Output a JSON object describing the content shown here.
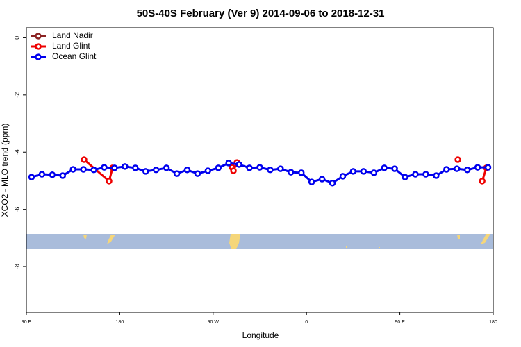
{
  "chart_data": {
    "type": "line",
    "title": "50S-40S February (Ver 9)   2014-09-06 to 2018-12-31",
    "xlabel": "Longitude",
    "ylabel": "XCO2 - MLO trend (ppm)",
    "xlim": [
      90,
      540
    ],
    "xticks": [
      {
        "value": 90,
        "label": "90 E"
      },
      180,
      {
        "value": 270,
        "label": "90 W"
      },
      {
        "value": 360,
        "label": "0"
      },
      {
        "value": 450,
        "label": "90 E"
      },
      {
        "value": 540,
        "label": "180"
      }
    ],
    "ylim": [
      -9.6,
      0.35
    ],
    "yticks": [
      0,
      -2,
      -4,
      -6,
      -8
    ],
    "legend": "top-left",
    "series": [
      {
        "name": "Land Nadir",
        "color": "#8b2323",
        "x": [],
        "values": []
      },
      {
        "name": "Land Glint",
        "color": "#ee0000",
        "x": [
          145.6,
          169.7,
          173.1,
          null,
          288.3,
          289.6,
          293,
          null,
          505.9,
          null,
          529.4,
          533.4
        ],
        "values": [
          -4.26,
          -5.01,
          -4.55,
          null,
          -4.53,
          -4.65,
          -4.36,
          null,
          -4.26,
          null,
          -5.01,
          -4.55
        ]
      },
      {
        "name": "Ocean Glint",
        "color": "#0000ee",
        "x": [
          95,
          105,
          115,
          125,
          135,
          145,
          155,
          165,
          175,
          185,
          195,
          205,
          215,
          225,
          235,
          245,
          255,
          265,
          275,
          285,
          295,
          305,
          315,
          325,
          335,
          345,
          355,
          365,
          375,
          385,
          395,
          405,
          415,
          425,
          435,
          445,
          455,
          465,
          475,
          485,
          495,
          505,
          515,
          525,
          535
        ],
        "values": [
          -4.87,
          -4.77,
          -4.79,
          -4.82,
          -4.6,
          -4.6,
          -4.62,
          -4.53,
          -4.55,
          -4.5,
          -4.55,
          -4.67,
          -4.62,
          -4.55,
          -4.75,
          -4.62,
          -4.75,
          -4.65,
          -4.55,
          -4.38,
          -4.43,
          -4.55,
          -4.53,
          -4.62,
          -4.58,
          -4.7,
          -4.72,
          -5.04,
          -4.94,
          -5.08,
          -4.84,
          -4.67,
          -4.67,
          -4.72,
          -4.55,
          -4.58,
          -4.87,
          -4.77,
          -4.77,
          -4.82,
          -4.6,
          -4.58,
          -4.62,
          -4.53,
          -4.53
        ]
      }
    ]
  }
}
